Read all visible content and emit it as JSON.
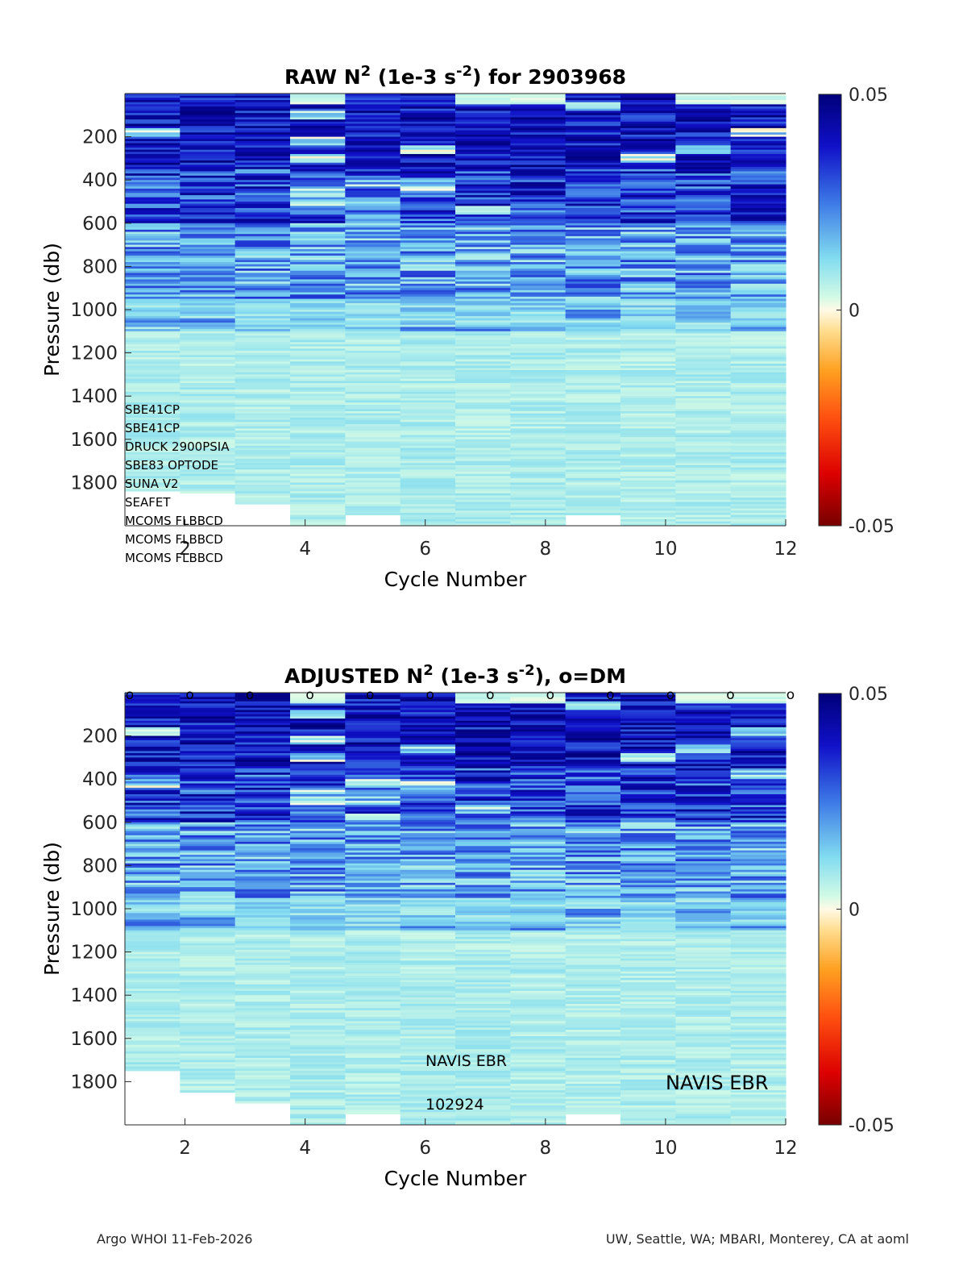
{
  "chart_data": [
    {
      "type": "heatmap",
      "title": "RAW N² (1e-3 s⁻²) for 2903968",
      "title_parts": {
        "pre": "RAW N",
        "sup1": "2",
        "mid": " (1e-3 s",
        "sup2": "-2",
        "post": ") for 2903968"
      },
      "xlabel": "Cycle Number",
      "ylabel": "Pressure (db)",
      "x_ticks": [
        2,
        4,
        6,
        8,
        10,
        12
      ],
      "y_ticks": [
        200,
        400,
        600,
        800,
        1000,
        1200,
        1400,
        1600,
        1800
      ],
      "xlim": [
        1,
        12
      ],
      "ylim": [
        0,
        2000
      ],
      "cycles": [
        1,
        2,
        3,
        4,
        5,
        6,
        7,
        8,
        9,
        10,
        11,
        12
      ],
      "profile_max_pressure": [
        1840,
        1850,
        1900,
        2000,
        1950,
        2000,
        2000,
        2000,
        1950,
        2000,
        2000,
        2000
      ],
      "colorbar": {
        "min": -0.05,
        "max": 0.05,
        "ticks": [
          "0.05",
          "0",
          "-0.05"
        ]
      },
      "sensor_notes": [
        "SBE41CP",
        "SBE41CP",
        "DRUCK 2900PSIA",
        "SBE83 OPTODE",
        "SUNA V2",
        "SEAFET",
        "MCOMS FLBBCD",
        "MCOMS FLBBCD",
        "MCOMS FLBBCD"
      ]
    },
    {
      "type": "heatmap",
      "title": "ADJUSTED N² (1e-3 s⁻²), o=DM",
      "title_parts": {
        "pre": "ADJUSTED N",
        "sup1": "2",
        "mid": " (1e-3 s",
        "sup2": "-2",
        "post": "), o=DM"
      },
      "xlabel": "Cycle Number",
      "ylabel": "Pressure (db)",
      "x_ticks": [
        2,
        4,
        6,
        8,
        10,
        12
      ],
      "y_ticks": [
        200,
        400,
        600,
        800,
        1000,
        1200,
        1400,
        1600,
        1800
      ],
      "xlim": [
        1,
        12
      ],
      "ylim": [
        0,
        2000
      ],
      "cycles": [
        1,
        2,
        3,
        4,
        5,
        6,
        7,
        8,
        9,
        10,
        11,
        12
      ],
      "profile_max_pressure": [
        1750,
        1850,
        1900,
        2000,
        1950,
        2000,
        2000,
        2000,
        1950,
        2000,
        2000,
        2000
      ],
      "colorbar": {
        "min": -0.05,
        "max": 0.05,
        "ticks": [
          "0.05",
          "0",
          "-0.05"
        ]
      },
      "dm_marker": "o",
      "dm_cycles": [
        1,
        2,
        3,
        4,
        5,
        6,
        7,
        8,
        9,
        10,
        11,
        12
      ],
      "platform_notes": {
        "model": "NAVIS EBR",
        "serial": "102924",
        "model_right": "NAVIS EBR"
      }
    }
  ],
  "footer": {
    "left": "Argo WHOI 11-Feb-2026",
    "right": "UW, Seattle, WA; MBARI, Monterey, CA at aoml"
  },
  "colors": {
    "axis": "#262626",
    "text": "#262626",
    "background": "#ffffff"
  }
}
